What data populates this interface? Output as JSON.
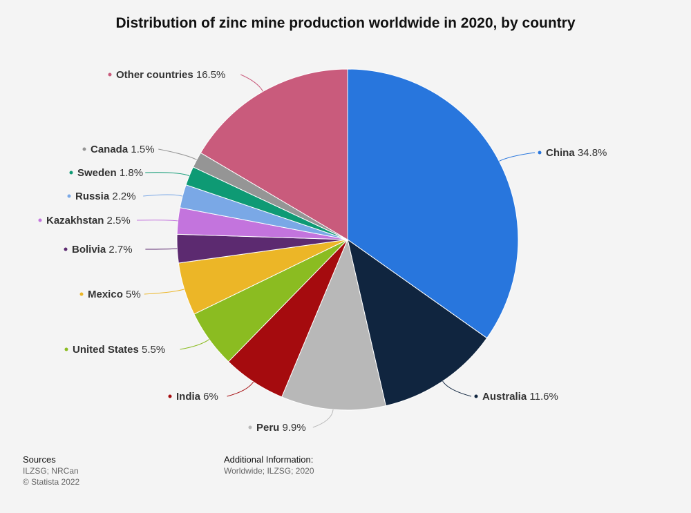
{
  "chart_data": {
    "type": "pie",
    "title": "Distribution of zinc mine production worldwide in 2020, by country",
    "slices": [
      {
        "label": "China",
        "value": 34.8,
        "value_label": "34.8%",
        "color": "#2876dd"
      },
      {
        "label": "Australia",
        "value": 11.6,
        "value_label": "11.6%",
        "color": "#10253f"
      },
      {
        "label": "Peru",
        "value": 9.9,
        "value_label": "9.9%",
        "color": "#b8b8b8"
      },
      {
        "label": "India",
        "value": 6,
        "value_label": "6%",
        "color": "#a50b0e"
      },
      {
        "label": "United States",
        "value": 5.5,
        "value_label": "5.5%",
        "color": "#8bbc21"
      },
      {
        "label": "Mexico",
        "value": 5,
        "value_label": "5%",
        "color": "#ecb627"
      },
      {
        "label": "Bolivia",
        "value": 2.7,
        "value_label": "2.7%",
        "color": "#5c2a70"
      },
      {
        "label": "Kazakhstan",
        "value": 2.5,
        "value_label": "2.5%",
        "color": "#c374dd"
      },
      {
        "label": "Russia",
        "value": 2.2,
        "value_label": "2.2%",
        "color": "#7aa8e6"
      },
      {
        "label": "Sweden",
        "value": 1.8,
        "value_label": "1.8%",
        "color": "#0e9a74"
      },
      {
        "label": "Canada",
        "value": 1.5,
        "value_label": "1.5%",
        "color": "#959595"
      },
      {
        "label": "Other countries",
        "value": 16.5,
        "value_label": "16.5%",
        "color": "#c95b7c"
      }
    ]
  },
  "footer": {
    "sources_heading": "Sources",
    "sources_lines": [
      "ILZSG; NRCan",
      "© Statista 2022"
    ],
    "info_heading": "Additional Information:",
    "info_text": "Worldwide; ILZSG; 2020"
  }
}
